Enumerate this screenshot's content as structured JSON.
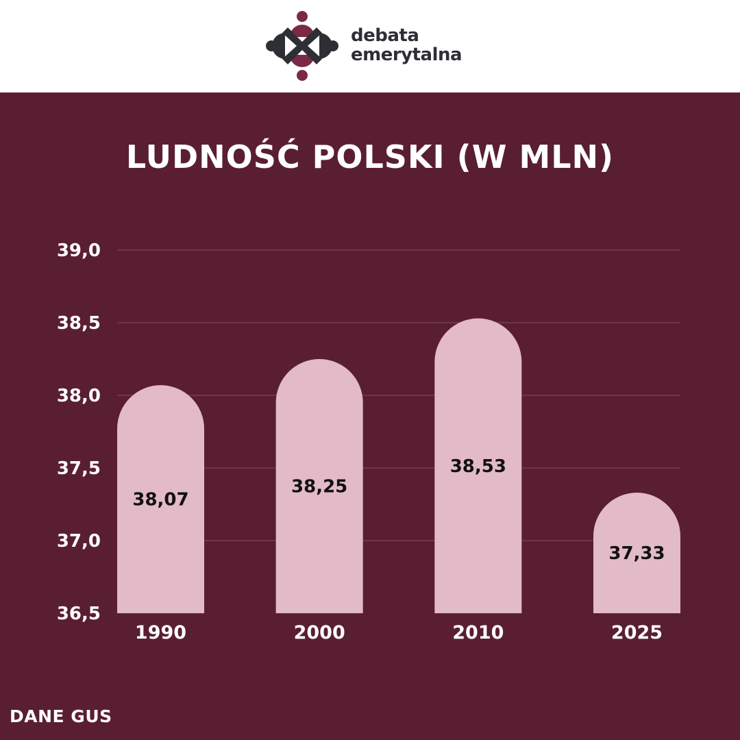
{
  "brand": {
    "name_line1": "debata",
    "name_line2": "emerytalna",
    "logo_icon": "four-people-circle-icon"
  },
  "source_label": "DANE GUS",
  "colors": {
    "background": "#5a1e32",
    "bar": "#e3bac7",
    "grid": "#7a4356",
    "logo_dark": "#2d2f35",
    "logo_accent": "#7a2a44"
  },
  "chart_data": {
    "type": "bar",
    "title": "LUDNOŚĆ POLSKI (W MLN)",
    "xlabel": "",
    "ylabel": "",
    "categories": [
      "1990",
      "2000",
      "2010",
      "2025"
    ],
    "values": [
      38.07,
      38.25,
      38.53,
      37.33
    ],
    "value_labels": [
      "38,07",
      "38,25",
      "38,53",
      "37,33"
    ],
    "ylim": [
      36.5,
      39.0
    ],
    "y_ticks": [
      36.5,
      37.0,
      37.5,
      38.0,
      38.5,
      39.0
    ],
    "y_tick_labels": [
      "36,5",
      "37,0",
      "37,5",
      "38,0",
      "38,5",
      "39,0"
    ],
    "grid": true,
    "legend": "none"
  }
}
